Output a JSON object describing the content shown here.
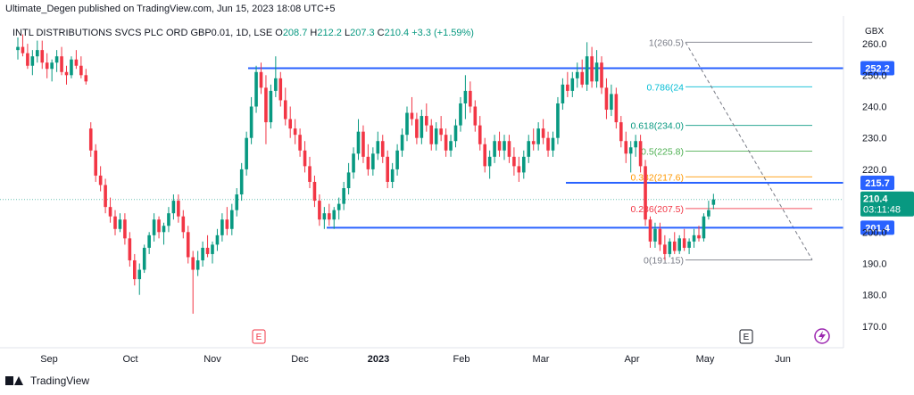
{
  "header": {
    "published": "Ultimate_Degen published on TradingView.com, Jun 15, 2023 18:08 UTC+5"
  },
  "legend": {
    "symbol": "INTL DISTRIBUTIONS SVCS PLC ORD GBP0.01, 1D, LSE",
    "o_label": "O",
    "o": "208.7",
    "h_label": "H",
    "h": "212.2",
    "l_label": "L",
    "l": "207.3",
    "c_label": "C",
    "c": "210.4",
    "change": "+3.3 (+1.59%)"
  },
  "footer": {
    "brand": "TradingView"
  },
  "colors": {
    "up": "#089981",
    "down": "#f23645",
    "level": "#2962ff",
    "text": "#131722"
  },
  "chart_data": {
    "type": "candlestick",
    "currency": "GBX",
    "ylim": [
      165,
      265
    ],
    "yticks": [
      170,
      180,
      190,
      200,
      210,
      220,
      230,
      240,
      250,
      260
    ],
    "xticks": [
      "Sep",
      "Oct",
      "Nov",
      "Dec",
      "2023",
      "Feb",
      "Mar",
      "Apr",
      "May",
      "Jun"
    ],
    "price_levels": [
      {
        "value": 252.2,
        "label": "252.2"
      },
      {
        "value": 215.7,
        "label": "215.7"
      },
      {
        "value": 201.4,
        "label": "201.4"
      }
    ],
    "last_price": {
      "value": 210.4,
      "label": "210.4",
      "countdown": "03:11:48"
    },
    "fibonacci": [
      {
        "ratio": "1",
        "value": 260.5,
        "label": "1(260.5)",
        "color": "#787b86"
      },
      {
        "ratio": "0.786",
        "value": 246.3,
        "label": "0.786(24",
        "color": "#00bcd4"
      },
      {
        "ratio": "0.618",
        "value": 234.0,
        "label": "0.618(234.0)",
        "color": "#089981"
      },
      {
        "ratio": "0.5",
        "value": 225.8,
        "label": "0.5(225.8)",
        "color": "#4caf50"
      },
      {
        "ratio": "0.382",
        "value": 217.6,
        "label": "0.382(217.6)",
        "color": "#ff9800"
      },
      {
        "ratio": "0.236",
        "value": 207.5,
        "label": "0.236(207.5)",
        "color": "#f23645"
      },
      {
        "ratio": "0",
        "value": 191.15,
        "label": "0(191.15)",
        "color": "#787b86"
      }
    ],
    "events": [
      {
        "month": "Nov",
        "label": "E"
      },
      {
        "month": "May",
        "label": "E"
      }
    ],
    "candles": [
      {
        "o": 258,
        "h": 262,
        "l": 255,
        "c": 259
      },
      {
        "o": 259,
        "h": 263,
        "l": 256,
        "c": 257
      },
      {
        "o": 257,
        "h": 260,
        "l": 252,
        "c": 253
      },
      {
        "o": 253,
        "h": 258,
        "l": 250,
        "c": 256
      },
      {
        "o": 256,
        "h": 261,
        "l": 254,
        "c": 258
      },
      {
        "o": 258,
        "h": 261,
        "l": 252,
        "c": 254
      },
      {
        "o": 254,
        "h": 257,
        "l": 249,
        "c": 252
      },
      {
        "o": 252,
        "h": 255,
        "l": 248,
        "c": 254
      },
      {
        "o": 254,
        "h": 258,
        "l": 251,
        "c": 256
      },
      {
        "o": 256,
        "h": 259,
        "l": 250,
        "c": 251
      },
      {
        "o": 251,
        "h": 253,
        "l": 247,
        "c": 250
      },
      {
        "o": 250,
        "h": 256,
        "l": 249,
        "c": 255
      },
      {
        "o": 255,
        "h": 258,
        "l": 252,
        "c": 253
      },
      {
        "o": 253,
        "h": 256,
        "l": 249,
        "c": 250
      },
      {
        "o": 250,
        "h": 252,
        "l": 247,
        "c": 248
      },
      {
        "o": 233,
        "h": 235,
        "l": 224,
        "c": 226
      },
      {
        "o": 226,
        "h": 228,
        "l": 216,
        "c": 218
      },
      {
        "o": 218,
        "h": 221,
        "l": 213,
        "c": 215
      },
      {
        "o": 215,
        "h": 217,
        "l": 206,
        "c": 208
      },
      {
        "o": 208,
        "h": 211,
        "l": 203,
        "c": 205
      },
      {
        "o": 205,
        "h": 207,
        "l": 199,
        "c": 201
      },
      {
        "o": 201,
        "h": 206,
        "l": 200,
        "c": 204
      },
      {
        "o": 204,
        "h": 206,
        "l": 196,
        "c": 198
      },
      {
        "o": 198,
        "h": 200,
        "l": 189,
        "c": 191
      },
      {
        "o": 191,
        "h": 193,
        "l": 183,
        "c": 185
      },
      {
        "o": 185,
        "h": 190,
        "l": 180,
        "c": 188
      },
      {
        "o": 188,
        "h": 196,
        "l": 187,
        "c": 195
      },
      {
        "o": 195,
        "h": 200,
        "l": 193,
        "c": 199
      },
      {
        "o": 199,
        "h": 206,
        "l": 197,
        "c": 204
      },
      {
        "o": 204,
        "h": 205,
        "l": 198,
        "c": 200
      },
      {
        "o": 200,
        "h": 203,
        "l": 196,
        "c": 202
      },
      {
        "o": 202,
        "h": 208,
        "l": 200,
        "c": 206
      },
      {
        "o": 206,
        "h": 212,
        "l": 204,
        "c": 210
      },
      {
        "o": 210,
        "h": 212,
        "l": 203,
        "c": 205
      },
      {
        "o": 205,
        "h": 207,
        "l": 198,
        "c": 200
      },
      {
        "o": 200,
        "h": 202,
        "l": 190,
        "c": 192
      },
      {
        "o": 192,
        "h": 194,
        "l": 174,
        "c": 188
      },
      {
        "o": 188,
        "h": 194,
        "l": 186,
        "c": 191
      },
      {
        "o": 191,
        "h": 197,
        "l": 189,
        "c": 195
      },
      {
        "o": 195,
        "h": 199,
        "l": 192,
        "c": 193
      },
      {
        "o": 193,
        "h": 197,
        "l": 190,
        "c": 196
      },
      {
        "o": 196,
        "h": 201,
        "l": 194,
        "c": 199
      },
      {
        "o": 199,
        "h": 206,
        "l": 197,
        "c": 204
      },
      {
        "o": 204,
        "h": 208,
        "l": 199,
        "c": 201
      },
      {
        "o": 201,
        "h": 209,
        "l": 199,
        "c": 207
      },
      {
        "o": 207,
        "h": 214,
        "l": 205,
        "c": 212
      },
      {
        "o": 212,
        "h": 222,
        "l": 210,
        "c": 220
      },
      {
        "o": 220,
        "h": 232,
        "l": 218,
        "c": 230
      },
      {
        "o": 230,
        "h": 243,
        "l": 228,
        "c": 240
      },
      {
        "o": 240,
        "h": 253,
        "l": 238,
        "c": 251
      },
      {
        "o": 251,
        "h": 254,
        "l": 244,
        "c": 246
      },
      {
        "o": 246,
        "h": 250,
        "l": 228,
        "c": 235
      },
      {
        "o": 235,
        "h": 247,
        "l": 233,
        "c": 245
      },
      {
        "o": 245,
        "h": 256,
        "l": 243,
        "c": 249
      },
      {
        "o": 249,
        "h": 251,
        "l": 240,
        "c": 242
      },
      {
        "o": 242,
        "h": 246,
        "l": 234,
        "c": 236
      },
      {
        "o": 236,
        "h": 240,
        "l": 230,
        "c": 233
      },
      {
        "o": 233,
        "h": 236,
        "l": 228,
        "c": 231
      },
      {
        "o": 231,
        "h": 233,
        "l": 224,
        "c": 226
      },
      {
        "o": 226,
        "h": 229,
        "l": 219,
        "c": 221
      },
      {
        "o": 221,
        "h": 224,
        "l": 214,
        "c": 216
      },
      {
        "o": 216,
        "h": 218,
        "l": 208,
        "c": 210
      },
      {
        "o": 210,
        "h": 212,
        "l": 202,
        "c": 204
      },
      {
        "o": 204,
        "h": 208,
        "l": 201,
        "c": 206
      },
      {
        "o": 206,
        "h": 209,
        "l": 202,
        "c": 204
      },
      {
        "o": 204,
        "h": 208,
        "l": 201,
        "c": 207
      },
      {
        "o": 207,
        "h": 211,
        "l": 204,
        "c": 209
      },
      {
        "o": 209,
        "h": 216,
        "l": 207,
        "c": 214
      },
      {
        "o": 214,
        "h": 222,
        "l": 212,
        "c": 219
      },
      {
        "o": 219,
        "h": 227,
        "l": 217,
        "c": 225
      },
      {
        "o": 225,
        "h": 236,
        "l": 223,
        "c": 232
      },
      {
        "o": 232,
        "h": 234,
        "l": 222,
        "c": 224
      },
      {
        "o": 224,
        "h": 228,
        "l": 218,
        "c": 220
      },
      {
        "o": 220,
        "h": 227,
        "l": 218,
        "c": 225
      },
      {
        "o": 225,
        "h": 232,
        "l": 223,
        "c": 229
      },
      {
        "o": 229,
        "h": 231,
        "l": 222,
        "c": 224
      },
      {
        "o": 224,
        "h": 226,
        "l": 214,
        "c": 216
      },
      {
        "o": 216,
        "h": 222,
        "l": 214,
        "c": 220
      },
      {
        "o": 220,
        "h": 228,
        "l": 218,
        "c": 226
      },
      {
        "o": 226,
        "h": 233,
        "l": 224,
        "c": 231
      },
      {
        "o": 231,
        "h": 240,
        "l": 229,
        "c": 238
      },
      {
        "o": 238,
        "h": 243,
        "l": 234,
        "c": 236
      },
      {
        "o": 236,
        "h": 238,
        "l": 228,
        "c": 230
      },
      {
        "o": 230,
        "h": 239,
        "l": 228,
        "c": 237
      },
      {
        "o": 237,
        "h": 241,
        "l": 232,
        "c": 234
      },
      {
        "o": 234,
        "h": 236,
        "l": 226,
        "c": 228
      },
      {
        "o": 228,
        "h": 235,
        "l": 226,
        "c": 233
      },
      {
        "o": 233,
        "h": 237,
        "l": 229,
        "c": 231
      },
      {
        "o": 231,
        "h": 233,
        "l": 224,
        "c": 226
      },
      {
        "o": 226,
        "h": 231,
        "l": 224,
        "c": 229
      },
      {
        "o": 229,
        "h": 236,
        "l": 227,
        "c": 234
      },
      {
        "o": 234,
        "h": 243,
        "l": 232,
        "c": 241
      },
      {
        "o": 241,
        "h": 250,
        "l": 236,
        "c": 245
      },
      {
        "o": 245,
        "h": 248,
        "l": 238,
        "c": 240
      },
      {
        "o": 240,
        "h": 242,
        "l": 232,
        "c": 234
      },
      {
        "o": 234,
        "h": 237,
        "l": 226,
        "c": 228
      },
      {
        "o": 228,
        "h": 230,
        "l": 219,
        "c": 221
      },
      {
        "o": 221,
        "h": 226,
        "l": 217,
        "c": 224
      },
      {
        "o": 224,
        "h": 231,
        "l": 222,
        "c": 229
      },
      {
        "o": 229,
        "h": 232,
        "l": 224,
        "c": 226
      },
      {
        "o": 226,
        "h": 231,
        "l": 223,
        "c": 229
      },
      {
        "o": 229,
        "h": 231,
        "l": 222,
        "c": 224
      },
      {
        "o": 224,
        "h": 227,
        "l": 218,
        "c": 221
      },
      {
        "o": 221,
        "h": 224,
        "l": 216,
        "c": 219
      },
      {
        "o": 219,
        "h": 226,
        "l": 217,
        "c": 224
      },
      {
        "o": 224,
        "h": 231,
        "l": 222,
        "c": 229
      },
      {
        "o": 229,
        "h": 233,
        "l": 226,
        "c": 228
      },
      {
        "o": 228,
        "h": 235,
        "l": 226,
        "c": 233
      },
      {
        "o": 233,
        "h": 236,
        "l": 228,
        "c": 230
      },
      {
        "o": 230,
        "h": 232,
        "l": 224,
        "c": 226
      },
      {
        "o": 226,
        "h": 232,
        "l": 224,
        "c": 230
      },
      {
        "o": 230,
        "h": 243,
        "l": 228,
        "c": 241
      },
      {
        "o": 241,
        "h": 249,
        "l": 239,
        "c": 247
      },
      {
        "o": 247,
        "h": 251,
        "l": 243,
        "c": 245
      },
      {
        "o": 245,
        "h": 251,
        "l": 243,
        "c": 249
      },
      {
        "o": 249,
        "h": 254,
        "l": 246,
        "c": 251
      },
      {
        "o": 251,
        "h": 255,
        "l": 246,
        "c": 247
      },
      {
        "o": 247,
        "h": 260.5,
        "l": 245,
        "c": 256
      },
      {
        "o": 256,
        "h": 259,
        "l": 246,
        "c": 248
      },
      {
        "o": 248,
        "h": 258,
        "l": 246,
        "c": 254
      },
      {
        "o": 254,
        "h": 256,
        "l": 244,
        "c": 246
      },
      {
        "o": 246,
        "h": 249,
        "l": 236,
        "c": 239
      },
      {
        "o": 239,
        "h": 247,
        "l": 237,
        "c": 244
      },
      {
        "o": 244,
        "h": 246,
        "l": 233,
        "c": 235
      },
      {
        "o": 235,
        "h": 237,
        "l": 227,
        "c": 229
      },
      {
        "o": 229,
        "h": 232,
        "l": 222,
        "c": 225
      },
      {
        "o": 225,
        "h": 229,
        "l": 219,
        "c": 227
      },
      {
        "o": 227,
        "h": 231,
        "l": 224,
        "c": 229
      },
      {
        "o": 229,
        "h": 231,
        "l": 219,
        "c": 221
      },
      {
        "o": 221,
        "h": 223,
        "l": 202,
        "c": 204
      },
      {
        "o": 204,
        "h": 205,
        "l": 195,
        "c": 197
      },
      {
        "o": 197,
        "h": 203,
        "l": 195,
        "c": 201
      },
      {
        "o": 201,
        "h": 203,
        "l": 194,
        "c": 196
      },
      {
        "o": 196,
        "h": 199,
        "l": 191.15,
        "c": 193
      },
      {
        "o": 193,
        "h": 198,
        "l": 192,
        "c": 197
      },
      {
        "o": 197,
        "h": 200,
        "l": 193,
        "c": 194
      },
      {
        "o": 194,
        "h": 199,
        "l": 193,
        "c": 198
      },
      {
        "o": 198,
        "h": 201,
        "l": 194,
        "c": 195
      },
      {
        "o": 195,
        "h": 198,
        "l": 193,
        "c": 197
      },
      {
        "o": 197,
        "h": 201,
        "l": 195,
        "c": 199
      },
      {
        "o": 199,
        "h": 202,
        "l": 197,
        "c": 198
      },
      {
        "o": 198,
        "h": 206,
        "l": 197,
        "c": 205
      },
      {
        "o": 205,
        "h": 210,
        "l": 204,
        "c": 207
      },
      {
        "o": 208.7,
        "h": 212.2,
        "l": 207.3,
        "c": 210.4
      }
    ]
  }
}
